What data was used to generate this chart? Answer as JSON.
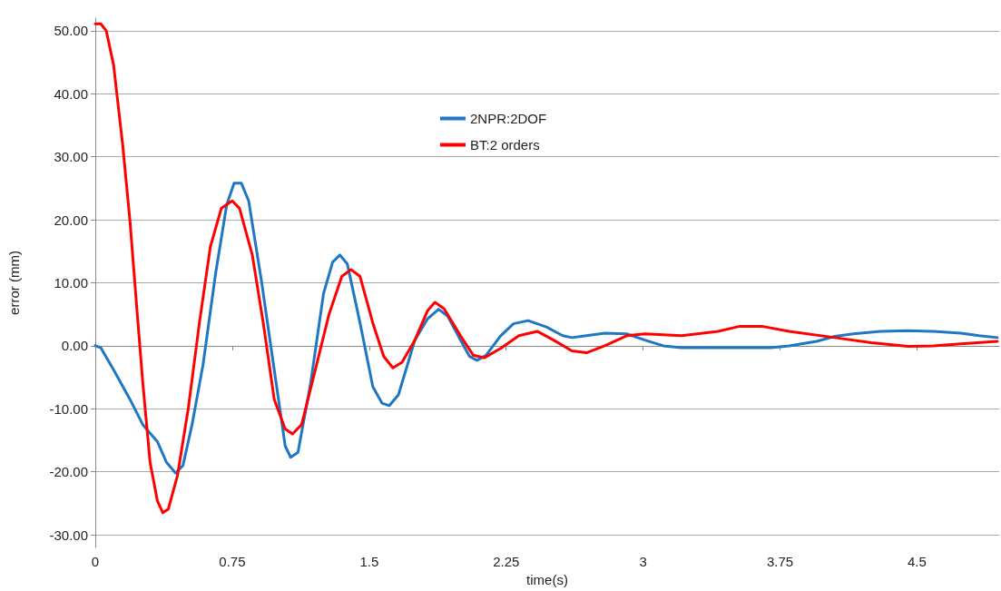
{
  "chart_data": {
    "type": "line",
    "xlabel": "time(s)",
    "ylabel": "error (mm)",
    "xlim": [
      0,
      4.95
    ],
    "xticks": [
      0,
      0.75,
      1.5,
      2.25,
      3,
      3.75,
      4.5
    ],
    "ylim": [
      -32,
      52
    ],
    "yticks": [
      {
        "value": -30,
        "label": "-30.00"
      },
      {
        "value": -20,
        "label": "-20.00"
      },
      {
        "value": -10,
        "label": "-10.00"
      },
      {
        "value": 0,
        "label": "0.00"
      },
      {
        "value": 10,
        "label": "10.00"
      },
      {
        "value": 20,
        "label": "20.00"
      },
      {
        "value": 30,
        "label": "30.00"
      },
      {
        "value": 40,
        "label": "40.00"
      },
      {
        "value": 50,
        "label": "50.00"
      }
    ],
    "grid": "y",
    "legend": "top",
    "marker": "none",
    "line_style": "solid",
    "series": [
      {
        "name": "2NPR:2DOF",
        "color": "#1f77c4",
        "x": [
          0,
          0.03,
          0.1,
          0.19,
          0.26,
          0.34,
          0.39,
          0.44,
          0.48,
          0.53,
          0.59,
          0.66,
          0.72,
          0.76,
          0.8,
          0.84,
          0.91,
          1.04,
          1.07,
          1.11,
          1.18,
          1.25,
          1.3,
          1.34,
          1.38,
          1.45,
          1.52,
          1.57,
          1.61,
          1.66,
          1.75,
          1.82,
          1.88,
          1.93,
          2.0,
          2.05,
          2.09,
          2.14,
          2.22,
          2.29,
          2.37,
          2.47,
          2.56,
          2.61,
          2.69,
          2.79,
          2.91,
          3.01,
          3.11,
          3.21,
          3.7,
          3.8,
          3.95,
          4.05,
          4.15,
          4.3,
          4.45,
          4.59,
          4.74,
          4.84,
          4.94
        ],
        "values": [
          0,
          -0.3,
          -3.8,
          -8.5,
          -12.5,
          -15.2,
          -18.5,
          -20.2,
          -19,
          -12.5,
          -3,
          11.7,
          22.4,
          25.8,
          25.8,
          23,
          10.3,
          -15.9,
          -17.7,
          -16.9,
          -5.8,
          8.3,
          13.3,
          14.4,
          13,
          3.6,
          -6.5,
          -9.1,
          -9.5,
          -7.8,
          0.9,
          4.3,
          5.8,
          4.7,
          0.9,
          -1.7,
          -2.3,
          -1.5,
          1.6,
          3.5,
          4,
          3,
          1.6,
          1.3,
          1.6,
          2,
          1.9,
          0.9,
          0,
          -0.3,
          -0.3,
          0,
          0.7,
          1.5,
          1.9,
          2.3,
          2.4,
          2.3,
          2,
          1.6,
          1.3
        ]
      },
      {
        "name": "BT:2 orders",
        "color": "#ff0000",
        "x": [
          0,
          0.03,
          0.06,
          0.1,
          0.15,
          0.19,
          0.23,
          0.26,
          0.3,
          0.34,
          0.37,
          0.4,
          0.45,
          0.51,
          0.57,
          0.63,
          0.69,
          0.75,
          0.79,
          0.86,
          0.92,
          0.98,
          1.04,
          1.08,
          1.13,
          1.2,
          1.28,
          1.35,
          1.4,
          1.45,
          1.52,
          1.58,
          1.63,
          1.68,
          1.75,
          1.82,
          1.86,
          1.91,
          2.0,
          2.07,
          2.13,
          2.22,
          2.32,
          2.42,
          2.51,
          2.61,
          2.69,
          2.79,
          2.91,
          3.01,
          3.21,
          3.41,
          3.53,
          3.65,
          3.8,
          4.05,
          4.25,
          4.45,
          4.59,
          4.74,
          4.94
        ],
        "values": [
          51.1,
          51.1,
          50,
          44.6,
          31.9,
          19.8,
          5,
          -5.8,
          -18.5,
          -24.6,
          -26.5,
          -25.9,
          -20.6,
          -9.8,
          3.6,
          15.7,
          21.8,
          23,
          21.8,
          14.4,
          3.6,
          -8.5,
          -13.2,
          -14,
          -12.5,
          -4.4,
          5,
          11,
          12.1,
          11,
          3.6,
          -1.7,
          -3.5,
          -2.6,
          0.9,
          5.6,
          6.9,
          5.9,
          1.6,
          -1.5,
          -1.9,
          -0.4,
          1.6,
          2.3,
          0.9,
          -0.8,
          -1.1,
          0,
          1.6,
          1.9,
          1.6,
          2.3,
          3.1,
          3.1,
          2.3,
          1.3,
          0.5,
          -0.1,
          0,
          0.3,
          0.7
        ]
      }
    ]
  }
}
